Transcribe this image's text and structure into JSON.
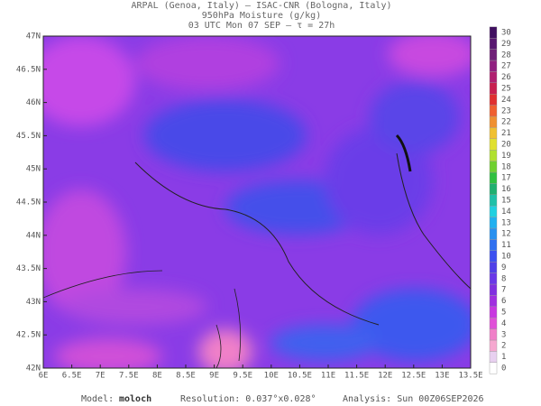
{
  "header": {
    "lines": [
      "ARPAL (Genoa, Italy)  –  ISAC-CNR (Bologna, Italy)",
      "950hPa Moisture (g/kg)",
      "03 UTC Mon 07 SEP  –  τ = 27h"
    ]
  },
  "map": {
    "lonlim": [
      6,
      13.5
    ],
    "latlim": [
      42,
      47
    ],
    "lon_ticks": [
      {
        "value": 6,
        "label": "6E"
      },
      {
        "value": 6.5,
        "label": "6.5E"
      },
      {
        "value": 7,
        "label": "7E"
      },
      {
        "value": 7.5,
        "label": "7.5E"
      },
      {
        "value": 8,
        "label": "8E"
      },
      {
        "value": 8.5,
        "label": "8.5E"
      },
      {
        "value": 9,
        "label": "9E"
      },
      {
        "value": 9.5,
        "label": "9.5E"
      },
      {
        "value": 10,
        "label": "10E"
      },
      {
        "value": 10.5,
        "label": "10.5E"
      },
      {
        "value": 11,
        "label": "11E"
      },
      {
        "value": 11.5,
        "label": "11.5E"
      },
      {
        "value": 12,
        "label": "12E"
      },
      {
        "value": 12.5,
        "label": "12.5E"
      },
      {
        "value": 13,
        "label": "13E"
      },
      {
        "value": 13.5,
        "label": "13.5E"
      }
    ],
    "lat_ticks": [
      {
        "value": 42,
        "label": "42N"
      },
      {
        "value": 42.5,
        "label": "42.5N"
      },
      {
        "value": 43,
        "label": "43N"
      },
      {
        "value": 43.5,
        "label": "43.5N"
      },
      {
        "value": 44,
        "label": "44N"
      },
      {
        "value": 44.5,
        "label": "44.5N"
      },
      {
        "value": 45,
        "label": "45N"
      },
      {
        "value": 45.5,
        "label": "45.5N"
      },
      {
        "value": 46,
        "label": "46N"
      },
      {
        "value": 46.5,
        "label": "46.5N"
      },
      {
        "value": 47,
        "label": "47N"
      }
    ]
  },
  "colorbar": {
    "ticks": [
      0,
      1,
      2,
      3,
      4,
      5,
      6,
      7,
      8,
      9,
      10,
      11,
      12,
      13,
      14,
      15,
      16,
      17,
      18,
      19,
      20,
      21,
      22,
      23,
      24,
      25,
      26,
      27,
      28,
      29,
      30
    ],
    "colors": [
      "#ffffff",
      "#e8d0f0",
      "#f6a8d0",
      "#f080c8",
      "#e050d8",
      "#c838e0",
      "#a030e0",
      "#8030e0",
      "#6a38e8",
      "#5040e8",
      "#3c50f0",
      "#3070f0",
      "#2890f0",
      "#20b0f0",
      "#20d0e0",
      "#20c0a8",
      "#20b070",
      "#30c040",
      "#70d030",
      "#b0e030",
      "#e0e030",
      "#f0c030",
      "#f09030",
      "#f06030",
      "#e03030",
      "#c82050",
      "#b02070",
      "#902080",
      "#702078",
      "#581870",
      "#401060"
    ]
  },
  "footer": {
    "model_label": "Model:",
    "model": "moloch",
    "resolution": "Resolution: 0.037°x0.028°",
    "analysis": "Analysis: Sun 00Z06SEP2026"
  }
}
